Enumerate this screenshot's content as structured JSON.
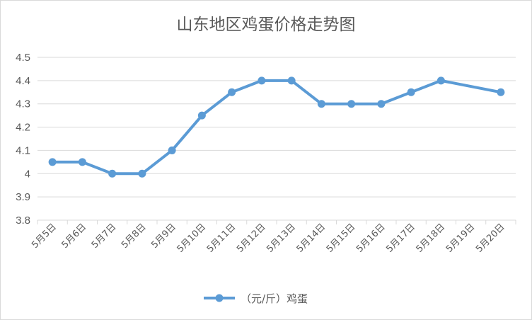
{
  "chart_data": {
    "type": "line",
    "title": "山东地区鸡蛋价格走势图",
    "categories": [
      "5月5日",
      "5月6日",
      "5月7日",
      "5月8日",
      "5月9日",
      "5月10日",
      "5月11日",
      "5月12日",
      "5月13日",
      "5月14日",
      "5月15日",
      "5月16日",
      "5月17日",
      "5月18日",
      "5月19日",
      "5月20日"
    ],
    "series": [
      {
        "name": "（元/斤）鸡蛋",
        "values": [
          4.05,
          4.05,
          4.0,
          4.0,
          4.1,
          4.25,
          4.35,
          4.4,
          4.4,
          4.3,
          4.3,
          4.3,
          4.35,
          4.4,
          null,
          4.35
        ],
        "color": "#5b9bd5"
      }
    ],
    "ylim": [
      3.8,
      4.5
    ],
    "yticks": [
      "3.8",
      "3.9",
      "4",
      "4.1",
      "4.2",
      "4.3",
      "4.4",
      "4.5"
    ],
    "xlabel": "",
    "ylabel": "",
    "grid": true,
    "legend": "bottom",
    "gap_handling": "connect"
  }
}
